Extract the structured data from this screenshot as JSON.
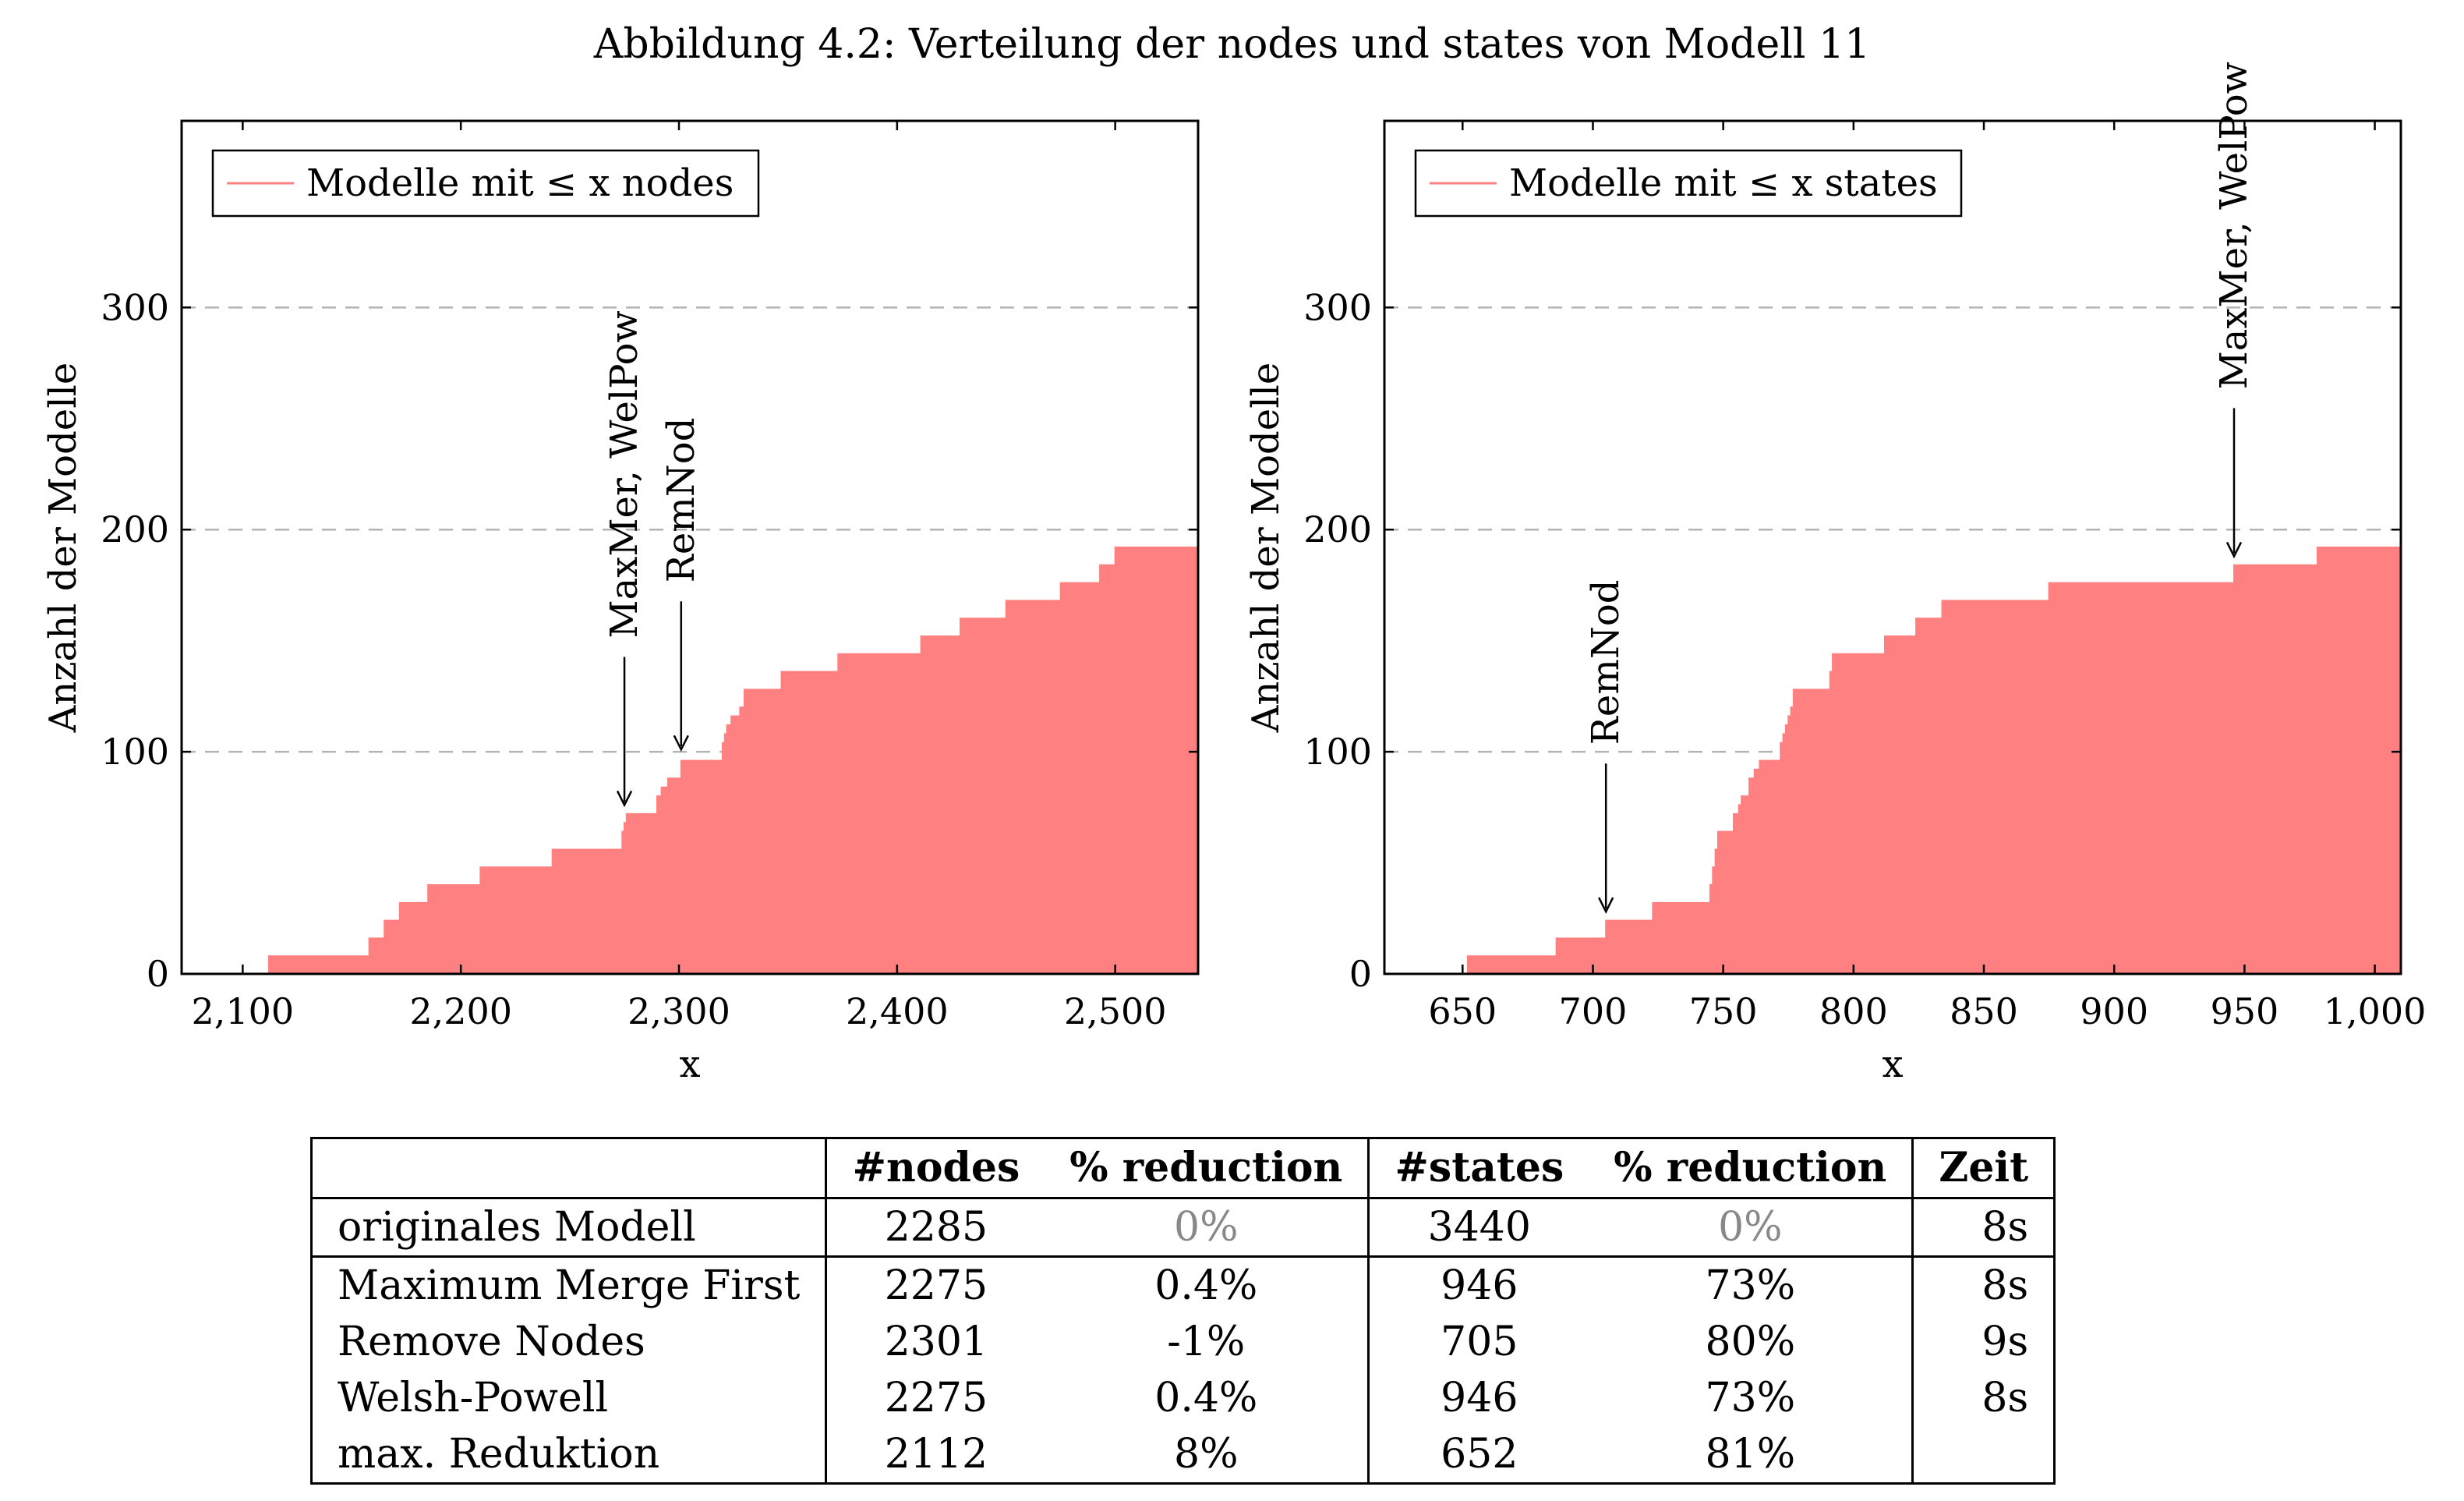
{
  "caption": "Abbildung 4.2: Verteilung der nodes und states von Modell 11",
  "colors": {
    "fill": "#ff8080",
    "grid": "#b3b3b3",
    "axis": "#000000",
    "muted": "#888888"
  },
  "chart_data": [
    {
      "type": "area",
      "step": true,
      "xlabel": "x",
      "ylabel": "Anzahl der Modelle",
      "xlim": [
        2072,
        2538
      ],
      "ylim": [
        0,
        384
      ],
      "xticks": [
        2100,
        2200,
        2300,
        2400,
        2500
      ],
      "xtick_labels": [
        "2,100",
        "2,200",
        "2,300",
        "2,400",
        "2,500"
      ],
      "yticks": [
        0,
        100,
        200,
        300
      ],
      "ytick_labels": [
        "0",
        "100",
        "200",
        "300"
      ],
      "grid": "horizontal dashed",
      "legend": {
        "label": "Modelle mit ≤ x nodes",
        "position": "top-left"
      },
      "series": [
        {
          "x": [
            2072,
            2112,
            2158,
            2165,
            2172,
            2185,
            2209,
            2242,
            2274,
            2275,
            2276,
            2290,
            2292,
            2295,
            2301,
            2320,
            2321,
            2322,
            2324,
            2328,
            2330,
            2347,
            2373,
            2411,
            2429,
            2450,
            2475,
            2493,
            2500,
            2538
          ],
          "y": [
            0,
            8,
            16,
            24,
            32,
            40,
            48,
            56,
            64,
            68,
            72,
            80,
            84,
            88,
            96,
            104,
            108,
            112,
            116,
            120,
            128,
            136,
            144,
            152,
            160,
            168,
            176,
            184,
            192,
            192
          ]
        }
      ],
      "annotations": [
        {
          "text": "MaxMer, WelPow",
          "x": 2275,
          "y": 76
        },
        {
          "text": "RemNod",
          "x": 2301,
          "y": 101
        }
      ]
    },
    {
      "type": "area",
      "step": true,
      "xlabel": "x",
      "ylabel": "Anzahl der Modelle",
      "xlim": [
        620,
        1010
      ],
      "ylim": [
        0,
        384
      ],
      "xticks": [
        650,
        700,
        750,
        800,
        850,
        900,
        950,
        1000
      ],
      "xtick_labels": [
        "650",
        "700",
        "750",
        "800",
        "850",
        "900",
        "950",
        "1,000"
      ],
      "yticks": [
        0,
        100,
        200,
        300
      ],
      "ytick_labels": [
        "0",
        "100",
        "200",
        "300"
      ],
      "grid": "horizontal dashed",
      "legend": {
        "label": "Modelle mit ≤ x states",
        "position": "top-left"
      },
      "series": [
        {
          "x": [
            620,
            652,
            686,
            705,
            723,
            745,
            746,
            747,
            748,
            754,
            756,
            757,
            760,
            762,
            764,
            772,
            773,
            774,
            775,
            776,
            777,
            791,
            792,
            812,
            824,
            834,
            875,
            946,
            978,
            1010
          ],
          "y": [
            0,
            8,
            16,
            24,
            32,
            40,
            48,
            56,
            64,
            72,
            76,
            80,
            88,
            92,
            96,
            104,
            108,
            112,
            116,
            120,
            128,
            136,
            144,
            152,
            160,
            168,
            176,
            184,
            192,
            192
          ]
        }
      ],
      "annotations": [
        {
          "text": "RemNod",
          "x": 705,
          "y": 28
        },
        {
          "text": "MaxMer, WelPow",
          "x": 946,
          "y": 188
        }
      ]
    }
  ],
  "table": {
    "headers": [
      "",
      "#nodes",
      "% reduction",
      "#states",
      "% reduction",
      "Zeit"
    ],
    "rows": [
      [
        "originales Modell",
        "2285",
        "0%",
        "3440",
        "0%",
        "8s"
      ],
      [
        "Maximum Merge First",
        "2275",
        "0.4%",
        "946",
        "73%",
        "8s"
      ],
      [
        "Remove Nodes",
        "2301",
        "-1%",
        "705",
        "80%",
        "9s"
      ],
      [
        "Welsh-Powell",
        "2275",
        "0.4%",
        "946",
        "73%",
        "8s"
      ],
      [
        "max. Reduktion",
        "2112",
        "8%",
        "652",
        "81%",
        ""
      ]
    ]
  }
}
